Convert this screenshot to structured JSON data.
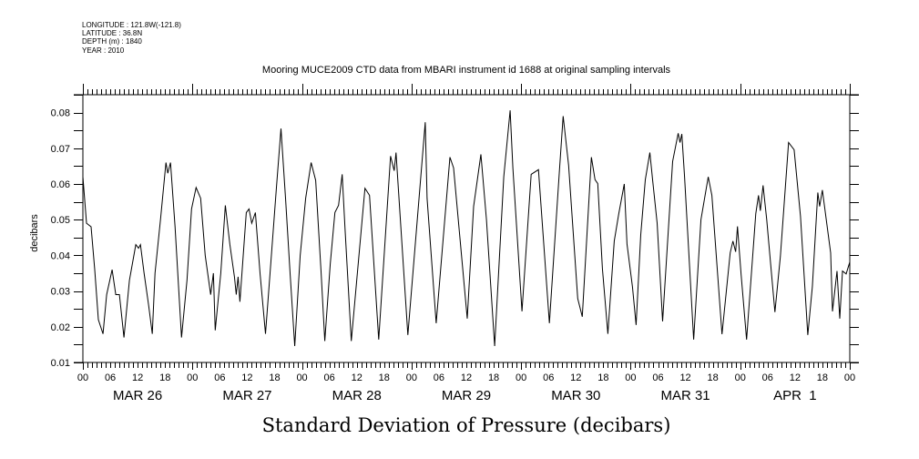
{
  "header": {
    "lines": [
      "LONGITUDE : 121.8W(-121.8)",
      "LATITUDE : 36.8N",
      "DEPTH (m) : 1840",
      "YEAR : 2010"
    ]
  },
  "chart_data": {
    "type": "line",
    "title": "Mooring MUCE2009 CTD data from MBARI instrument id 1688 at original sampling intervals",
    "xlabel": "Standard Deviation of Pressure (decibars)",
    "ylabel": "decibars",
    "x_units": "hours since MAR 26 00:00",
    "xlim": [
      0,
      168
    ],
    "ylim": [
      0.01,
      0.085
    ],
    "yticks": [
      "0.01",
      "0.02",
      "0.03",
      "0.04",
      "0.05",
      "0.06",
      "0.07",
      "0.08"
    ],
    "ytick_values": [
      0.01,
      0.02,
      0.03,
      0.04,
      0.05,
      0.06,
      0.07,
      0.08
    ],
    "xtick_hours": [
      "00",
      "06",
      "12",
      "18",
      "00",
      "06",
      "12",
      "18",
      "00",
      "06",
      "12",
      "18",
      "00",
      "06",
      "12",
      "18",
      "00",
      "06",
      "12",
      "18",
      "00",
      "06",
      "12",
      "18",
      "00",
      "06",
      "12",
      "18",
      "00"
    ],
    "day_labels": [
      "MAR 26",
      "MAR 27",
      "MAR 28",
      "MAR 29",
      "MAR 30",
      "MAR 31",
      "APR  1"
    ],
    "grid": false,
    "line_color": "#000000",
    "series": [
      {
        "name": "Standard Deviation of Pressure",
        "x": [
          0,
          0.8,
          1.8,
          2.6,
          3.4,
          4.4,
          5.2,
          6.4,
          7.2,
          8,
          9,
          10.2,
          11.6,
          12.2,
          12.6,
          13.4,
          14.4,
          15.2,
          15.8,
          17,
          18.2,
          18.6,
          19.2,
          20.2,
          21.6,
          22.8,
          23.8,
          24.8,
          25.8,
          26.8,
          28,
          28.6,
          29,
          30.2,
          31.2,
          32.2,
          33.2,
          33.6,
          34,
          34.4,
          35.8,
          36.4,
          37,
          37.8,
          38.8,
          40,
          41,
          42.4,
          43.4,
          44.4,
          45.4,
          46.4,
          47.6,
          48.8,
          50,
          51,
          52.2,
          53,
          54.2,
          55.2,
          56,
          56.8,
          57.4,
          58.8,
          61.8,
          62.8,
          64.8,
          67.4,
          68.2,
          68.6,
          71.2,
          75,
          75.4,
          77.4,
          80.4,
          81.2,
          84.2,
          85.6,
          87.2,
          88.4,
          90.2,
          92.2,
          93.6,
          94.2,
          96.2,
          98.2,
          99.8,
          102.2,
          104.4,
          105.2,
          106.4,
          108.4,
          109.4,
          111.4,
          112.2,
          112.8,
          113.8,
          115,
          116.4,
          117.4,
          118.6,
          119.2,
          120.4,
          121.2,
          122.2,
          123.2,
          124.2,
          124.8,
          125.8,
          127,
          129.2,
          130.4,
          130.8,
          131.2,
          131.8,
          133.8,
          135.4,
          137,
          137.8,
          140,
          141.8,
          142.4,
          143,
          143.4,
          144.2,
          145.4,
          147.4,
          148,
          148.4,
          149,
          149.8,
          151.6,
          152.8,
          154.6,
          155.8,
          157.2,
          158.8,
          159.8,
          161,
          161.4,
          162,
          163.8,
          164.2,
          165.2,
          165.8,
          166.4,
          167.2,
          168
        ],
        "values": [
          0.062,
          0.049,
          0.048,
          0.036,
          0.022,
          0.018,
          0.029,
          0.036,
          0.029,
          0.029,
          0.017,
          0.033,
          0.043,
          0.042,
          0.043,
          0.035,
          0.026,
          0.018,
          0.035,
          0.05,
          0.066,
          0.063,
          0.066,
          0.048,
          0.017,
          0.033,
          0.053,
          0.059,
          0.056,
          0.04,
          0.029,
          0.035,
          0.019,
          0.035,
          0.054,
          0.043,
          0.034,
          0.029,
          0.034,
          0.027,
          0.052,
          0.053,
          0.049,
          0.052,
          0.035,
          0.018,
          0.035,
          0.059,
          0.0755,
          0.056,
          0.035,
          0.0146,
          0.04,
          0.056,
          0.066,
          0.061,
          0.035,
          0.016,
          0.0376,
          0.052,
          0.054,
          0.0627,
          0.048,
          0.016,
          0.0588,
          0.0568,
          0.0164,
          0.0678,
          0.0637,
          0.0688,
          0.0177,
          0.0773,
          0.056,
          0.021,
          0.0675,
          0.0645,
          0.0223,
          0.0537,
          0.0683,
          0.05,
          0.0146,
          0.062,
          0.0806,
          0.0645,
          0.0243,
          0.0627,
          0.064,
          0.021,
          0.0637,
          0.079,
          0.0652,
          0.0279,
          0.0228,
          0.0675,
          0.0612,
          0.0601,
          0.0363,
          0.018,
          0.044,
          0.0517,
          0.06,
          0.0432,
          0.0312,
          0.0205,
          0.0458,
          0.0612,
          0.0688,
          0.0612,
          0.049,
          0.0215,
          0.0663,
          0.0742,
          0.0716,
          0.074,
          0.062,
          0.0164,
          0.05,
          0.062,
          0.0568,
          0.0179,
          0.0407,
          0.044,
          0.041,
          0.0481,
          0.0346,
          0.0164,
          0.0517,
          0.0568,
          0.0525,
          0.0596,
          0.05,
          0.0241,
          0.0397,
          0.0716,
          0.0696,
          0.0509,
          0.0177,
          0.0312,
          0.0576,
          0.0537,
          0.0583,
          0.0407,
          0.0243,
          0.0356,
          0.0223,
          0.0356,
          0.0348,
          0.0381
        ]
      }
    ]
  }
}
